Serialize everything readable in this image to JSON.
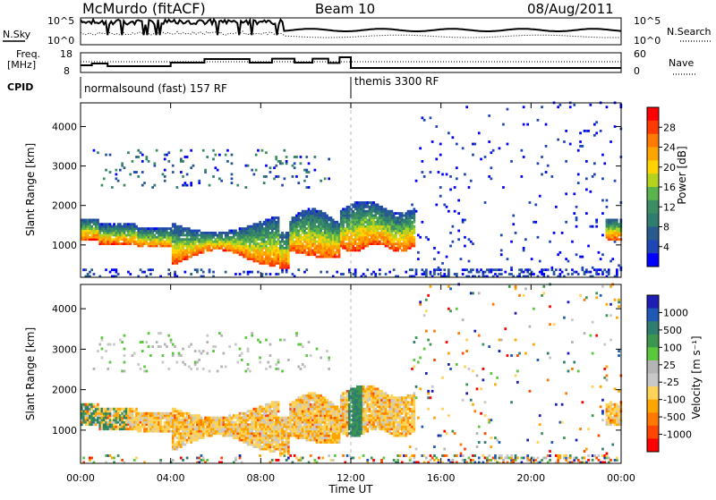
{
  "header": {
    "station": "McMurdo (fitACF)",
    "beam": "Beam 10",
    "date": "08/Aug/2011"
  },
  "top_panels": {
    "nsky_label": "N.Sky",
    "nsky_ticks": [
      "10^5",
      "10^0"
    ],
    "nsearch_label": "N.Search",
    "nsearch_ticks": [
      "10^5",
      "10^0"
    ],
    "freq_label_1": "Freq.",
    "freq_label_2": "[MHz]",
    "freq_ticks": [
      "18",
      "8"
    ],
    "nave_label": "Nave",
    "nave_ticks": [
      "60",
      "0"
    ],
    "cpid_label": "CPID",
    "cpid_segments": [
      {
        "label": "normalsound (fast) 157 RF",
        "start_hour": 0
      },
      {
        "label": "themis 3300 RF",
        "start_hour": 12
      }
    ]
  },
  "chart_data": [
    {
      "type": "heatmap",
      "name": "power",
      "ylabel": "Slant Range [km]",
      "yticks": [
        "4000",
        "3000",
        "2000",
        "1000"
      ],
      "ytick_values": [
        4000,
        3000,
        2000,
        1000
      ],
      "ylim": [
        180,
        4600
      ],
      "xlim": [
        0,
        24
      ],
      "colorbar_label": "Power [dB]",
      "colorbar_ticks": [
        "28",
        "24",
        "20",
        "16",
        "12",
        "8",
        "4"
      ],
      "colorbar_colors": [
        "#ff0000",
        "#ff3a00",
        "#ff7a00",
        "#ffa500",
        "#ffd200",
        "#b4d21e",
        "#5ab44b",
        "#3c8c64",
        "#2e7d6e",
        "#285a8c",
        "#1e46b4",
        "#0000ff"
      ]
    },
    {
      "type": "heatmap",
      "name": "velocity",
      "ylabel": "Slant Range [km]",
      "yticks": [
        "4000",
        "3000",
        "2000",
        "1000"
      ],
      "ytick_values": [
        4000,
        3000,
        2000,
        1000
      ],
      "ylim": [
        180,
        4600
      ],
      "xlim": [
        0,
        24
      ],
      "colorbar_label": "Velocity [m s⁻¹]",
      "colorbar_ticks": [
        "1000",
        "500",
        "100",
        "25",
        "-25",
        "-100",
        "-500",
        "-1000"
      ],
      "colorbar_colors": [
        "#1e1eb4",
        "#1e5ab4",
        "#2e7d6e",
        "#3c9650",
        "#5ac83c",
        "#b4b4b4",
        "#c8c8c8",
        "#ffd25a",
        "#ffa500",
        "#ff7800",
        "#ff4600",
        "#ff0000"
      ]
    }
  ],
  "x_axis": {
    "ticks": [
      "00:00",
      "04:00",
      "08:00",
      "12:00",
      "16:00",
      "20:00",
      "00:00"
    ],
    "tick_hours": [
      0,
      4,
      8,
      12,
      16,
      20,
      24
    ],
    "label": "Time UT"
  }
}
